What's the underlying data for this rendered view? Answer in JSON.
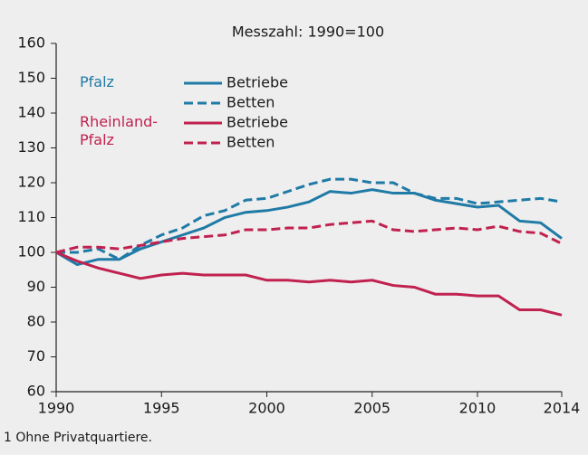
{
  "chart_data": {
    "type": "line",
    "title": "Messzahl: 1990=100",
    "x": [
      1990,
      1991,
      1992,
      1993,
      1994,
      1995,
      1996,
      1997,
      1998,
      1999,
      2000,
      2001,
      2002,
      2003,
      2004,
      2005,
      2006,
      2007,
      2008,
      2009,
      2010,
      2011,
      2012,
      2013,
      2014
    ],
    "legend_groups": [
      "Pfalz",
      "Rheinland-Pfalz"
    ],
    "series": [
      {
        "name": "Betriebe",
        "color": "#1f7aa6",
        "style": "solid",
        "values": [
          100,
          96.5,
          98,
          98,
          101,
          103,
          105,
          107,
          110,
          111.5,
          112,
          113,
          114.5,
          117.5,
          117,
          118,
          117,
          117,
          115,
          114,
          113,
          113.5,
          109,
          108.5,
          104
        ]
      },
      {
        "name": "Betten",
        "color": "#1f7aa6",
        "style": "dashed",
        "values": [
          100,
          100,
          101,
          98,
          102,
          105,
          107,
          110.5,
          112,
          115,
          115.5,
          117.5,
          119.5,
          121,
          121,
          120,
          120,
          117,
          115.5,
          115.5,
          114,
          114.5,
          115,
          115.5,
          114.5
        ]
      },
      {
        "name": "Betriebe",
        "color": "#c0214f",
        "style": "solid",
        "values": [
          100,
          97.5,
          95.5,
          94,
          92.5,
          93.5,
          94,
          93.5,
          93.5,
          93.5,
          92,
          92,
          91.5,
          92,
          91.5,
          92,
          90.5,
          90,
          88,
          88,
          87.5,
          87.5,
          83.5,
          83.5,
          82
        ]
      },
      {
        "name": "Betten",
        "color": "#c0214f",
        "style": "dashed",
        "values": [
          100,
          101.5,
          101.5,
          101,
          102,
          103,
          104,
          104.5,
          105,
          106.5,
          106.5,
          107,
          107,
          108,
          108.5,
          109,
          106.5,
          106,
          106.5,
          107,
          106.5,
          107.5,
          106,
          105.5,
          102.5
        ]
      }
    ],
    "xlim": [
      1990,
      2014
    ],
    "xticks": [
      1990,
      1995,
      2000,
      2005,
      2010,
      2014
    ],
    "ylim": [
      60,
      160
    ],
    "yticks": [
      60,
      70,
      80,
      90,
      100,
      110,
      120,
      130,
      140,
      150,
      160
    ],
    "footnote": "1 Ohne Privatquartiere."
  }
}
